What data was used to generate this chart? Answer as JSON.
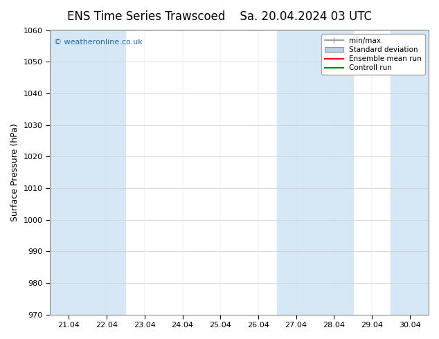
{
  "title_left": "ENS Time Series Trawscoed",
  "title_right": "Sa. 20.04.2024 03 UTC",
  "ylabel": "Surface Pressure (hPa)",
  "ylim": [
    970,
    1060
  ],
  "yticks": [
    970,
    980,
    990,
    1000,
    1010,
    1020,
    1030,
    1040,
    1050,
    1060
  ],
  "x_labels": [
    "21.04",
    "22.04",
    "23.04",
    "24.04",
    "25.04",
    "26.04",
    "27.04",
    "28.04",
    "29.04",
    "30.04"
  ],
  "shaded_bands": [
    0,
    1,
    6,
    7,
    9
  ],
  "band_color": "#d6e8f5",
  "legend_items": [
    {
      "label": "min/max",
      "color": "#a0a0a0",
      "style": "minmax"
    },
    {
      "label": "Standard deviation",
      "color": "#c0d0e0",
      "style": "std"
    },
    {
      "label": "Ensemble mean run",
      "color": "#ff0000",
      "style": "line"
    },
    {
      "label": "Controll run",
      "color": "#008000",
      "style": "line"
    }
  ],
  "watermark": "© weatheronline.co.uk",
  "watermark_color": "#1a6aa8",
  "bg_color": "#ffffff",
  "plot_bg_color": "#ffffff",
  "title_fontsize": 12,
  "tick_fontsize": 8,
  "ylabel_fontsize": 9
}
